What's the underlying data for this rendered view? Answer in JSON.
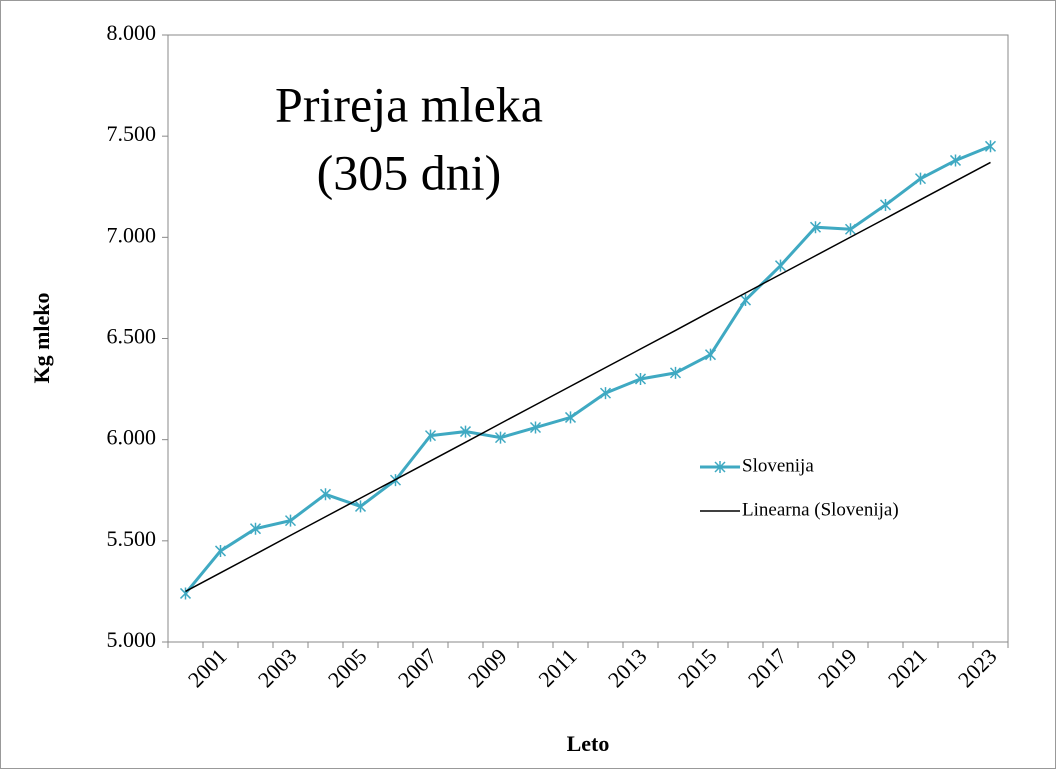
{
  "chart_data": {
    "type": "line",
    "title": [
      "Prireja mleka",
      "(305 dni)"
    ],
    "x_label": "Leto",
    "y_label": "Kg mleko",
    "categories": [
      null,
      "2001",
      null,
      "2003",
      null,
      "2005",
      null,
      "2007",
      null,
      "2009",
      null,
      "2011",
      null,
      "2013",
      null,
      "2015",
      null,
      "2017",
      null,
      "2019",
      null,
      "2021",
      null,
      "2023"
    ],
    "series": [
      {
        "name": "Slovenija",
        "color": "#3fa9c2",
        "marker": true,
        "values": [
          5240,
          5450,
          5560,
          5600,
          5730,
          5670,
          5800,
          6020,
          6040,
          6010,
          6060,
          6110,
          6230,
          6300,
          6330,
          6420,
          6690,
          6860,
          7050,
          7040,
          7160,
          7290,
          7380,
          7450
        ]
      },
      {
        "name": "Linearna (Slovenija)",
        "color": "#000000",
        "marker": false,
        "values": [
          5250,
          5342,
          5434,
          5527,
          5619,
          5711,
          5803,
          5895,
          5987,
          6080,
          6172,
          6264,
          6356,
          6448,
          6540,
          6633,
          6725,
          6817,
          6909,
          7001,
          7093,
          7186,
          7278,
          7370
        ]
      }
    ],
    "ylim": [
      5000,
      8000
    ],
    "yticks": [
      {
        "value": 5000,
        "label": "5.000"
      },
      {
        "value": 5500,
        "label": "5.500"
      },
      {
        "value": 6000,
        "label": "6.000"
      },
      {
        "value": 6500,
        "label": "6.500"
      },
      {
        "value": 7000,
        "label": "7.000"
      },
      {
        "value": 7500,
        "label": "7.500"
      },
      {
        "value": 8000,
        "label": "8.000"
      }
    ],
    "grid": false,
    "legend": "right"
  }
}
